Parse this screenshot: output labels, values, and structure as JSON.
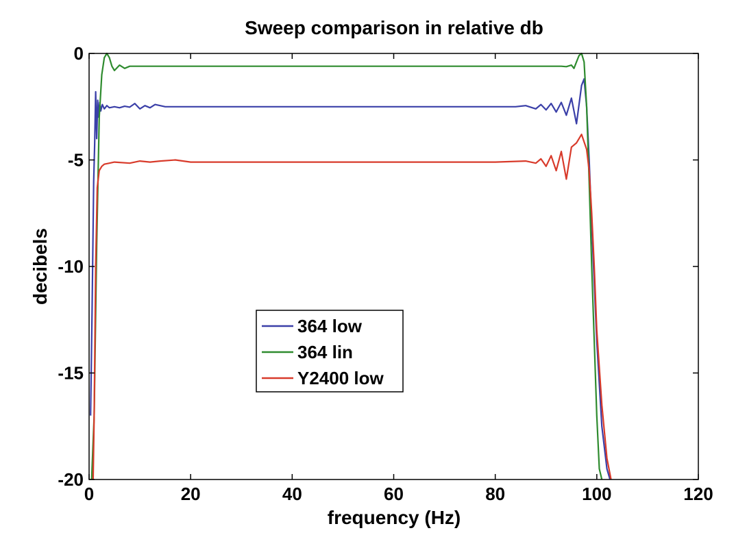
{
  "chart_data": {
    "type": "line",
    "title": "Sweep comparison in relative db",
    "xlabel": "frequency (Hz)",
    "ylabel": "decibels",
    "xlim": [
      0,
      120
    ],
    "ylim": [
      -20,
      0
    ],
    "xticks": [
      0,
      20,
      40,
      60,
      80,
      100,
      120
    ],
    "yticks": [
      0,
      -5,
      -10,
      -15,
      -20
    ],
    "xtick_labels": [
      "0",
      "20",
      "40",
      "60",
      "80",
      "100",
      "120"
    ],
    "ytick_labels": [
      "0",
      "-5",
      "-10",
      "-15",
      "-20"
    ],
    "grid": false,
    "legend_position": "center-left",
    "series": [
      {
        "name": "364 low",
        "color": "#3a3fa8",
        "x": [
          0.3,
          0.6,
          0.9,
          1.1,
          1.3,
          1.5,
          1.7,
          1.9,
          2.1,
          2.3,
          2.6,
          3.0,
          3.5,
          4.0,
          5.0,
          6.0,
          7.0,
          8.0,
          9.0,
          10.0,
          11.0,
          12.0,
          13.0,
          15.0,
          20.0,
          30.0,
          40.0,
          50.0,
          60.0,
          70.0,
          80.0,
          84.0,
          86.0,
          88.0,
          89.0,
          90.0,
          91.0,
          92.0,
          93.0,
          94.0,
          95.0,
          96.0,
          97.0,
          97.5,
          98.0,
          98.5,
          99.0,
          100.0,
          101.0,
          102.0,
          102.6
        ],
        "y": [
          -17.0,
          -12.0,
          -6.0,
          -4.3,
          -1.8,
          -4.0,
          -2.2,
          -3.0,
          -2.3,
          -2.7,
          -2.4,
          -2.6,
          -2.45,
          -2.55,
          -2.5,
          -2.55,
          -2.48,
          -2.52,
          -2.35,
          -2.6,
          -2.45,
          -2.55,
          -2.4,
          -2.5,
          -2.5,
          -2.5,
          -2.5,
          -2.5,
          -2.5,
          -2.5,
          -2.5,
          -2.5,
          -2.45,
          -2.6,
          -2.4,
          -2.65,
          -2.35,
          -2.75,
          -2.3,
          -2.9,
          -2.1,
          -3.3,
          -1.5,
          -1.2,
          -2.5,
          -5.0,
          -8.0,
          -13.5,
          -17.5,
          -19.5,
          -20.0
        ]
      },
      {
        "name": "364 lin",
        "color": "#2e8b2e",
        "x": [
          0.5,
          1.0,
          1.5,
          2.0,
          2.5,
          3.0,
          3.5,
          4.0,
          4.5,
          5.0,
          6.0,
          7.0,
          8.0,
          10.0,
          20.0,
          40.0,
          60.0,
          80.0,
          90.0,
          93.0,
          94.0,
          95.0,
          95.5,
          96.0,
          96.5,
          97.0,
          97.5,
          98.0,
          98.5,
          99.0,
          99.5,
          100.0,
          100.5,
          101.0
        ],
        "y": [
          -20.0,
          -17.0,
          -9.0,
          -3.0,
          -1.0,
          -0.2,
          0.0,
          -0.2,
          -0.6,
          -0.8,
          -0.55,
          -0.7,
          -0.6,
          -0.6,
          -0.6,
          -0.6,
          -0.6,
          -0.6,
          -0.6,
          -0.6,
          -0.62,
          -0.55,
          -0.7,
          -0.4,
          -0.1,
          0.0,
          -0.4,
          -2.5,
          -6.0,
          -10.0,
          -13.5,
          -17.0,
          -19.5,
          -20.0
        ]
      },
      {
        "name": "Y2400 low",
        "color": "#d83a2a",
        "x": [
          0.8,
          1.0,
          1.3,
          1.6,
          2.0,
          2.5,
          3.0,
          4.0,
          5.0,
          8.0,
          10.0,
          12.0,
          14.0,
          17.0,
          20.0,
          30.0,
          40.0,
          60.0,
          80.0,
          86.0,
          88.0,
          89.0,
          90.0,
          91.0,
          92.0,
          93.0,
          94.0,
          95.0,
          96.0,
          97.0,
          98.0,
          98.5,
          99.0,
          99.5,
          100.0,
          101.0,
          102.0,
          102.8
        ],
        "y": [
          -20.0,
          -17.0,
          -10.0,
          -6.3,
          -5.5,
          -5.3,
          -5.2,
          -5.15,
          -5.1,
          -5.15,
          -5.05,
          -5.1,
          -5.05,
          -5.0,
          -5.1,
          -5.1,
          -5.1,
          -5.1,
          -5.1,
          -5.05,
          -5.15,
          -4.95,
          -5.3,
          -4.8,
          -5.5,
          -4.6,
          -5.9,
          -4.4,
          -4.2,
          -3.8,
          -4.5,
          -5.5,
          -7.5,
          -10.0,
          -13.0,
          -16.5,
          -19.0,
          -20.0
        ]
      }
    ]
  }
}
